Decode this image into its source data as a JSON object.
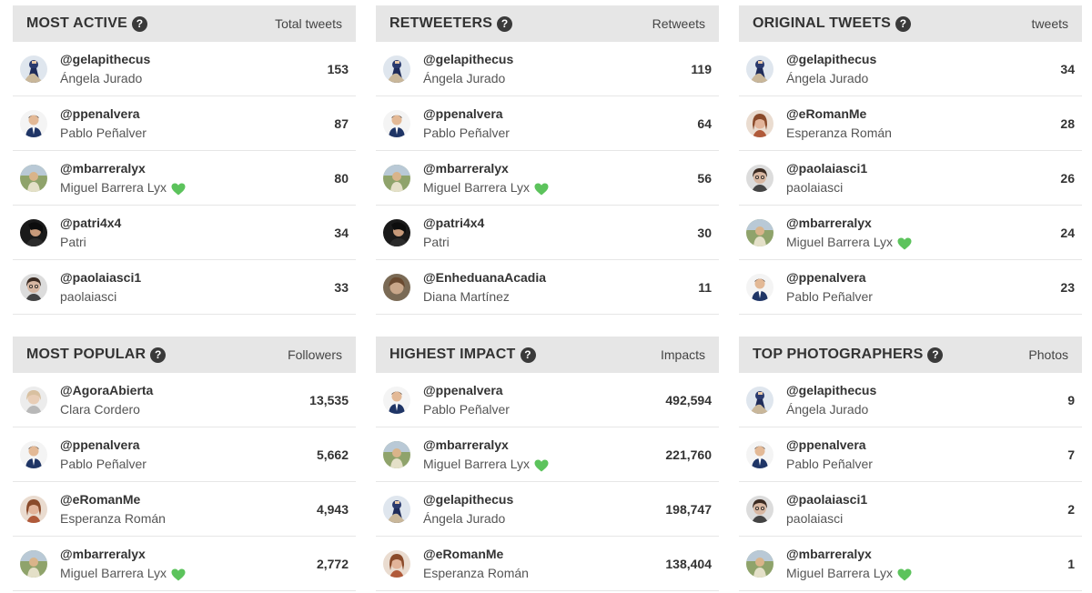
{
  "panels": [
    {
      "title": "MOST ACTIVE",
      "metric": "Total tweets",
      "rows": [
        {
          "handle": "@gelapithecus",
          "name": "Ángela Jurado",
          "value": "153",
          "avatar": "a-angela",
          "heart": false
        },
        {
          "handle": "@ppenalvera",
          "name": "Pablo Peñalver",
          "value": "87",
          "avatar": "a-pablo",
          "heart": false
        },
        {
          "handle": "@mbarreralyx",
          "name": "Miguel Barrera Lyx",
          "value": "80",
          "avatar": "a-miguel",
          "heart": true
        },
        {
          "handle": "@patri4x4",
          "name": "Patri",
          "value": "34",
          "avatar": "a-patri",
          "heart": false
        },
        {
          "handle": "@paolaiasci1",
          "name": "paolaiasci",
          "value": "33",
          "avatar": "a-paola",
          "heart": false
        }
      ]
    },
    {
      "title": "RETWEETERS",
      "metric": "Retweets",
      "rows": [
        {
          "handle": "@gelapithecus",
          "name": "Ángela Jurado",
          "value": "119",
          "avatar": "a-angela",
          "heart": false
        },
        {
          "handle": "@ppenalvera",
          "name": "Pablo Peñalver",
          "value": "64",
          "avatar": "a-pablo",
          "heart": false
        },
        {
          "handle": "@mbarreralyx",
          "name": "Miguel Barrera Lyx",
          "value": "56",
          "avatar": "a-miguel",
          "heart": true
        },
        {
          "handle": "@patri4x4",
          "name": "Patri",
          "value": "30",
          "avatar": "a-patri",
          "heart": false
        },
        {
          "handle": "@EnheduanaAcadia",
          "name": "Diana Martínez",
          "value": "11",
          "avatar": "a-diana",
          "heart": false
        }
      ]
    },
    {
      "title": "ORIGINAL TWEETS",
      "metric": "tweets",
      "rows": [
        {
          "handle": "@gelapithecus",
          "name": "Ángela Jurado",
          "value": "34",
          "avatar": "a-angela",
          "heart": false
        },
        {
          "handle": "@eRomanMe",
          "name": "Esperanza Román",
          "value": "28",
          "avatar": "a-esperanza",
          "heart": false
        },
        {
          "handle": "@paolaiasci1",
          "name": "paolaiasci",
          "value": "26",
          "avatar": "a-paola",
          "heart": false
        },
        {
          "handle": "@mbarreralyx",
          "name": "Miguel Barrera Lyx",
          "value": "24",
          "avatar": "a-miguel",
          "heart": true
        },
        {
          "handle": "@ppenalvera",
          "name": "Pablo Peñalver",
          "value": "23",
          "avatar": "a-pablo",
          "heart": false
        }
      ]
    },
    {
      "title": "MOST POPULAR",
      "metric": "Followers",
      "rows": [
        {
          "handle": "@AgoraAbierta",
          "name": "Clara Cordero",
          "value": "13,535",
          "avatar": "a-clara",
          "heart": false
        },
        {
          "handle": "@ppenalvera",
          "name": "Pablo Peñalver",
          "value": "5,662",
          "avatar": "a-pablo",
          "heart": false
        },
        {
          "handle": "@eRomanMe",
          "name": "Esperanza Román",
          "value": "4,943",
          "avatar": "a-esperanza",
          "heart": false
        },
        {
          "handle": "@mbarreralyx",
          "name": "Miguel Barrera Lyx",
          "value": "2,772",
          "avatar": "a-miguel",
          "heart": true
        }
      ]
    },
    {
      "title": "HIGHEST IMPACT",
      "metric": "Impacts",
      "rows": [
        {
          "handle": "@ppenalvera",
          "name": "Pablo Peñalver",
          "value": "492,594",
          "avatar": "a-pablo",
          "heart": false
        },
        {
          "handle": "@mbarreralyx",
          "name": "Miguel Barrera Lyx",
          "value": "221,760",
          "avatar": "a-miguel",
          "heart": true
        },
        {
          "handle": "@gelapithecus",
          "name": "Ángela Jurado",
          "value": "198,747",
          "avatar": "a-angela",
          "heart": false
        },
        {
          "handle": "@eRomanMe",
          "name": "Esperanza Román",
          "value": "138,404",
          "avatar": "a-esperanza",
          "heart": false
        }
      ]
    },
    {
      "title": "TOP PHOTOGRAPHERS",
      "metric": "Photos",
      "rows": [
        {
          "handle": "@gelapithecus",
          "name": "Ángela Jurado",
          "value": "9",
          "avatar": "a-angela",
          "heart": false
        },
        {
          "handle": "@ppenalvera",
          "name": "Pablo Peñalver",
          "value": "7",
          "avatar": "a-pablo",
          "heart": false
        },
        {
          "handle": "@paolaiasci1",
          "name": "paolaiasci",
          "value": "2",
          "avatar": "a-paola",
          "heart": false
        },
        {
          "handle": "@mbarreralyx",
          "name": "Miguel Barrera Lyx",
          "value": "1",
          "avatar": "a-miguel",
          "heart": true
        }
      ]
    }
  ],
  "icons": {
    "help": "help-circle-icon",
    "heart": "green-heart-icon"
  },
  "colors": {
    "header_bg": "#e6e6e6",
    "heart": "#5cc35c",
    "divider": "#e6e6e6"
  }
}
